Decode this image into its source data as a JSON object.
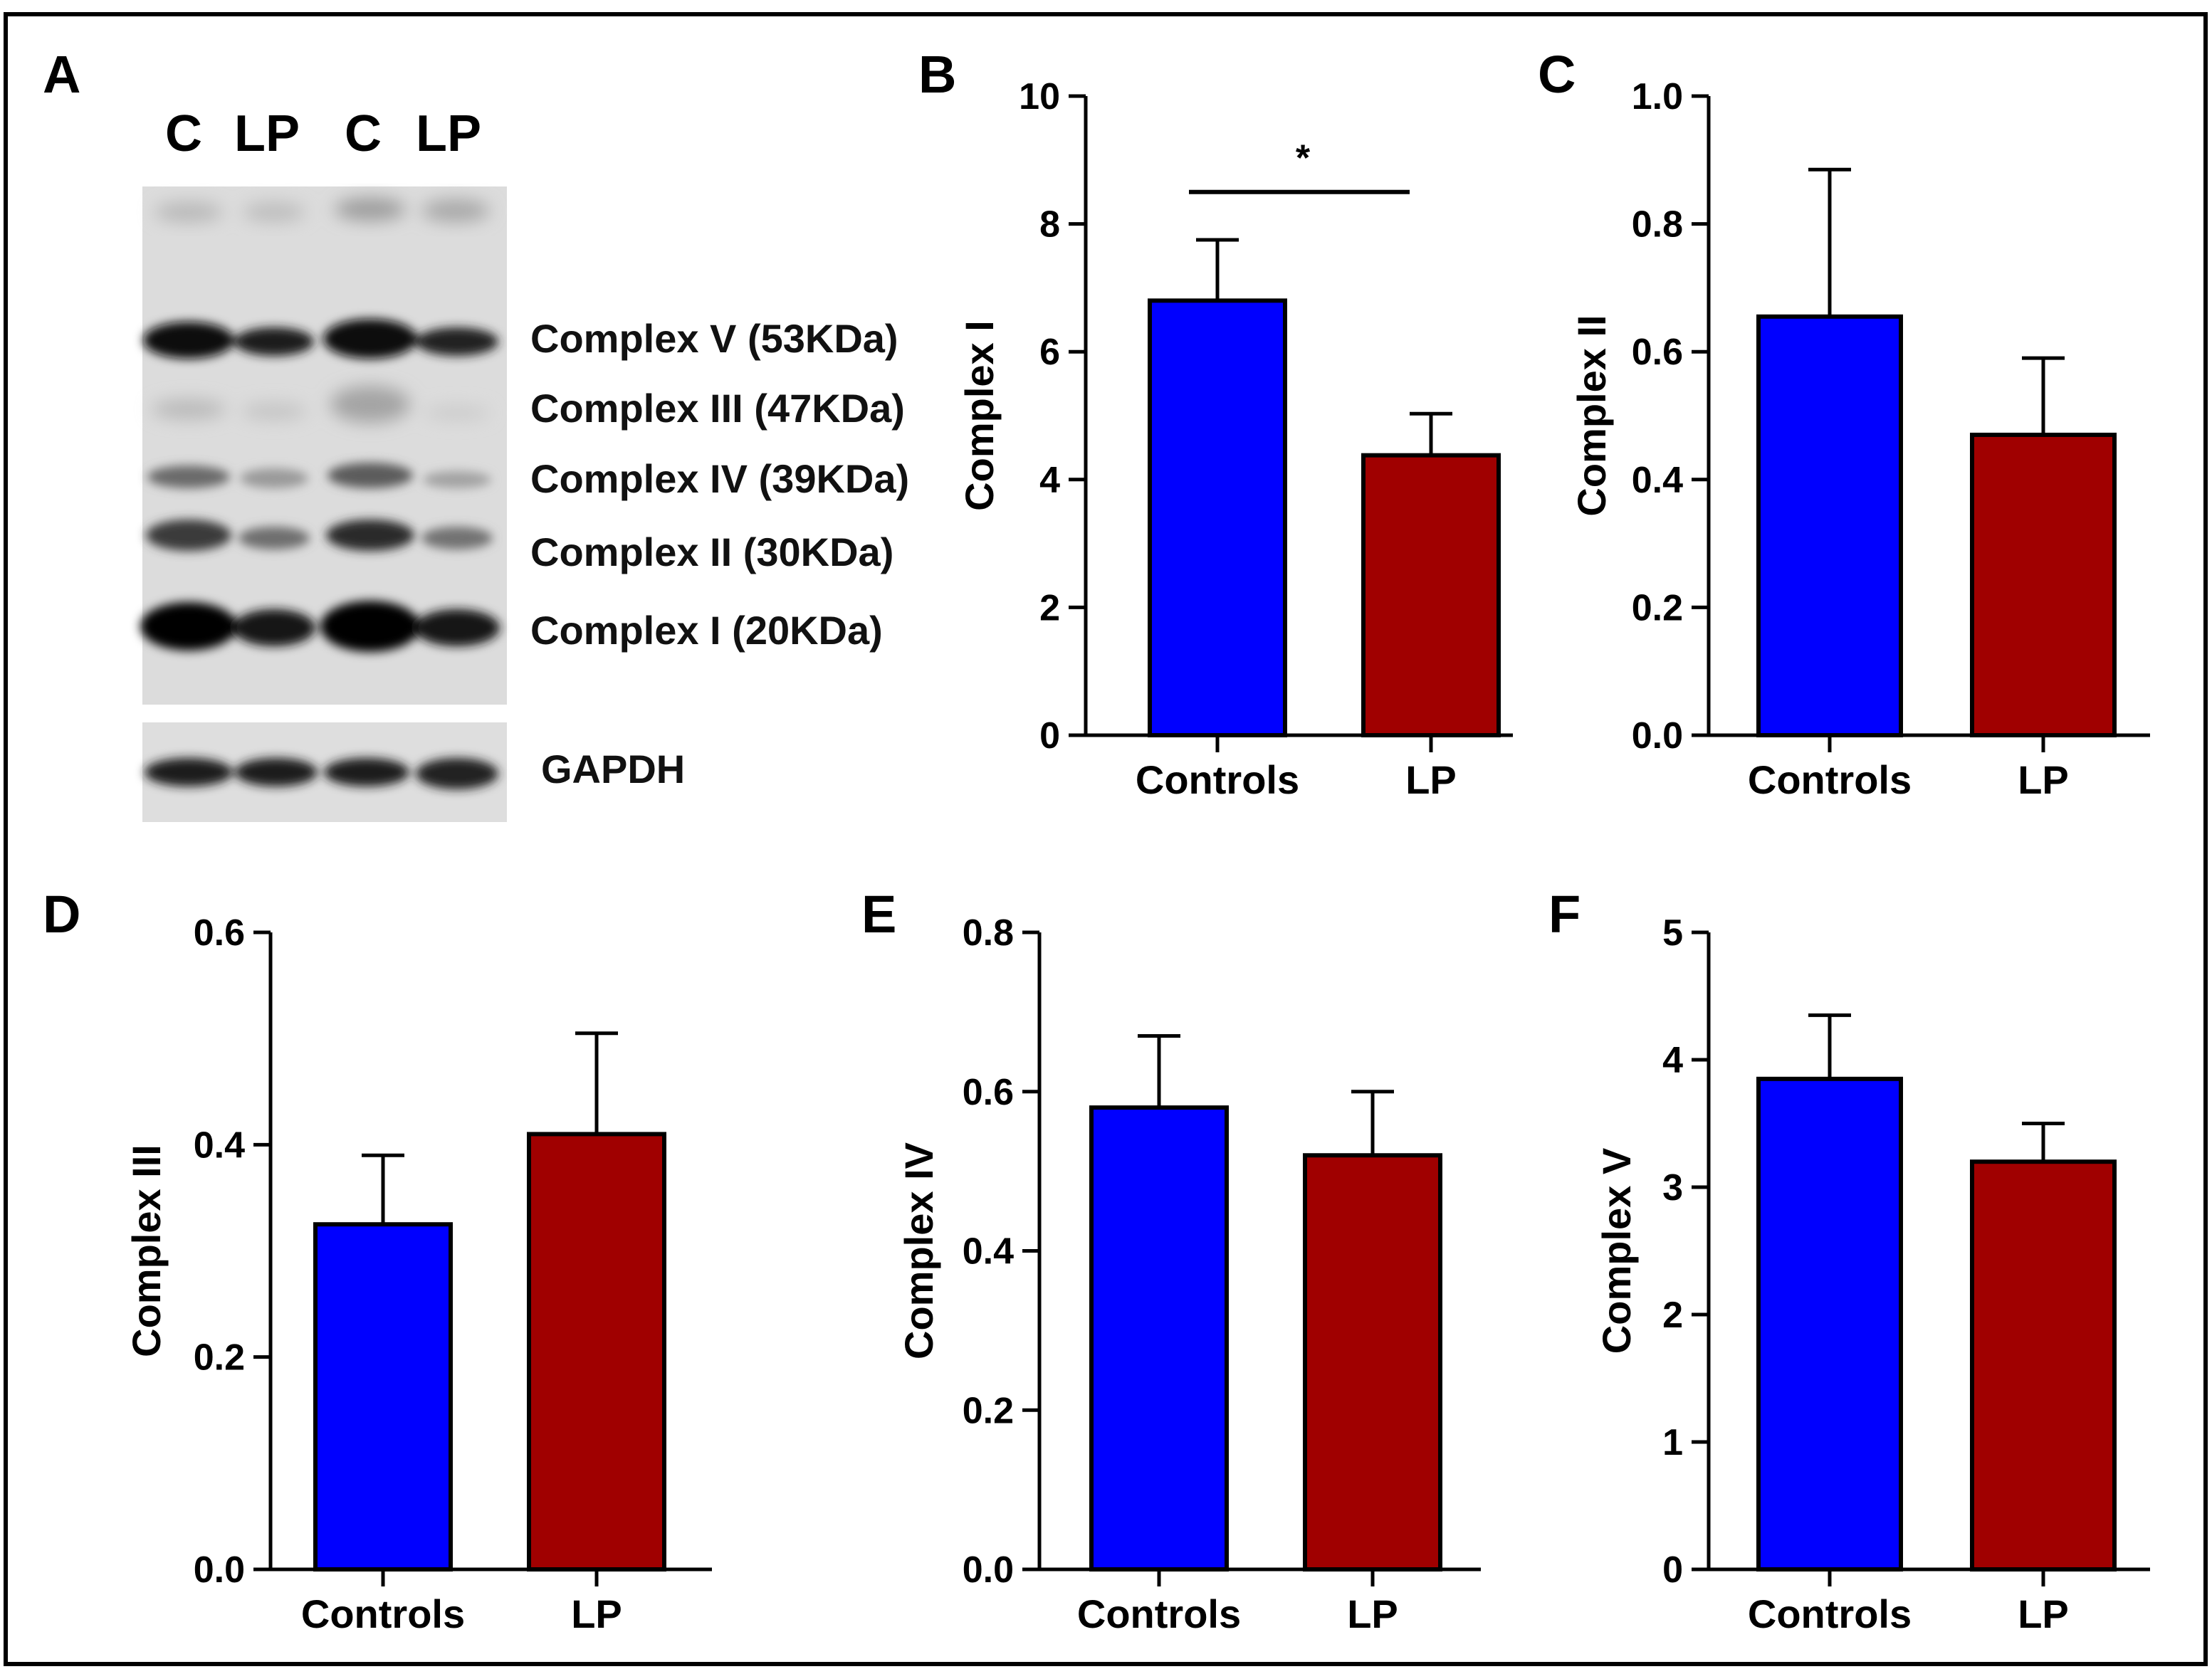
{
  "colors": {
    "control": "#0000ff",
    "lp": "#a00000",
    "axis": "#000000",
    "frame": "#000000"
  },
  "blot": {
    "panel_letter": "A",
    "lanes": [
      "C",
      "LP",
      "C",
      "LP"
    ],
    "bands": [
      "Complex V (53KDa)",
      "Complex III (47KDa)",
      "Complex IV (39KDa)",
      "Complex II (30KDa)",
      "Complex I (20KDa)"
    ],
    "loading_control": "GAPDH"
  },
  "chart_data": [
    {
      "panel": "B",
      "type": "bar",
      "ylabel": "Complex I",
      "categories": [
        "Controls",
        "LP"
      ],
      "values": [
        6.8,
        4.38
      ],
      "errors": [
        0.95,
        0.65
      ],
      "ylim": [
        0,
        10
      ],
      "yticks": [
        "0",
        "2",
        "4",
        "6",
        "8",
        "10"
      ],
      "significance": "*"
    },
    {
      "panel": "C",
      "type": "bar",
      "ylabel": "Complex II",
      "categories": [
        "Controls",
        "LP"
      ],
      "values": [
        0.655,
        0.47
      ],
      "errors": [
        0.23,
        0.12
      ],
      "ylim": [
        0,
        1.0
      ],
      "yticks": [
        "0.0",
        "0.2",
        "0.4",
        "0.6",
        "0.8",
        "1.0"
      ]
    },
    {
      "panel": "D",
      "type": "bar",
      "ylabel": "Complex III",
      "categories": [
        "Controls",
        "LP"
      ],
      "values": [
        0.325,
        0.41
      ],
      "errors": [
        0.065,
        0.095
      ],
      "ylim": [
        0,
        0.6
      ],
      "yticks": [
        "0.0",
        "0.2",
        "0.4",
        "0.6"
      ]
    },
    {
      "panel": "E",
      "type": "bar",
      "ylabel": "Complex IV",
      "categories": [
        "Controls",
        "LP"
      ],
      "values": [
        0.58,
        0.52
      ],
      "errors": [
        0.09,
        0.08
      ],
      "ylim": [
        0,
        0.8
      ],
      "yticks": [
        "0.0",
        "0.2",
        "0.4",
        "0.6",
        "0.8"
      ]
    },
    {
      "panel": "F",
      "type": "bar",
      "ylabel": "Complex V",
      "categories": [
        "Controls",
        "LP"
      ],
      "values": [
        3.85,
        3.2
      ],
      "errors": [
        0.5,
        0.3
      ],
      "ylim": [
        0,
        5
      ],
      "yticks": [
        "0",
        "1",
        "2",
        "3",
        "4",
        "5"
      ]
    }
  ]
}
